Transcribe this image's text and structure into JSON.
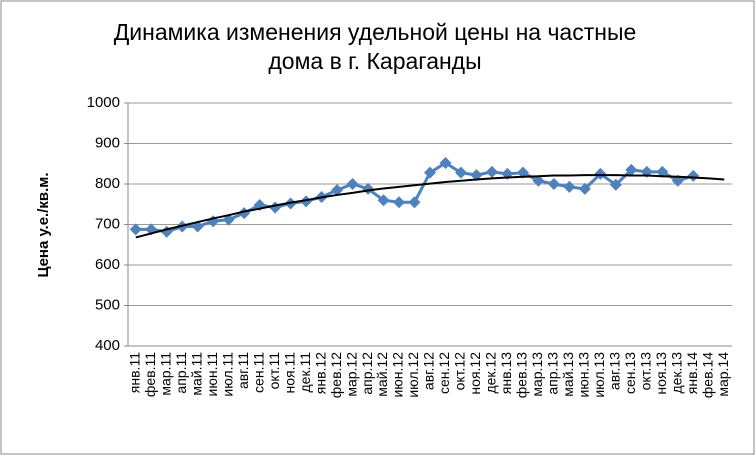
{
  "chart_data": {
    "type": "line",
    "title": "Динамика изменения удельной цены на частные дома в г. Караганды",
    "y_label": "Цена у.е./кв.м.",
    "categories": [
      "янв.11",
      "фев.11",
      "мар.11",
      "апр.11",
      "май.11",
      "июн.11",
      "июл.11",
      "авг.11",
      "сен.11",
      "окт.11",
      "ноя.11",
      "дек.11",
      "янв.12",
      "фев.12",
      "мар.12",
      "апр.12",
      "май.12",
      "июн.12",
      "июл.12",
      "авг.12",
      "сен.12",
      "окт.12",
      "ноя.12",
      "дек.12",
      "янв.13",
      "фев.13",
      "мар.13",
      "апр.13",
      "май.13",
      "июн.13",
      "июл.13",
      "авг.13",
      "сен.13",
      "окт.13",
      "ноя.13",
      "дек.13",
      "янв.14",
      "фев.14",
      "мар.14"
    ],
    "series": [
      {
        "color": "#4f81bd",
        "marker": "diamond",
        "values": [
          688,
          688,
          682,
          695,
          695,
          708,
          712,
          728,
          748,
          742,
          752,
          757,
          768,
          785,
          800,
          788,
          760,
          755,
          755,
          828,
          852,
          828,
          822,
          830,
          825,
          828,
          808,
          800,
          793,
          788,
          825,
          798,
          835,
          830,
          830,
          808,
          820,
          null,
          null
        ]
      },
      {
        "color": "#000000",
        "marker": "none",
        "values": [
          668,
          678,
          688,
          697,
          706,
          715,
          723,
          732,
          739,
          747,
          754,
          760,
          767,
          773,
          778,
          784,
          789,
          793,
          797,
          801,
          805,
          808,
          811,
          814,
          816,
          818,
          819,
          821,
          821,
          822,
          822,
          822,
          821,
          821,
          819,
          818,
          816,
          814,
          811
        ]
      }
    ],
    "ylim": [
      400,
      1000
    ],
    "yticks": [
      400,
      500,
      600,
      700,
      800,
      900,
      1000
    ],
    "grid": true
  }
}
